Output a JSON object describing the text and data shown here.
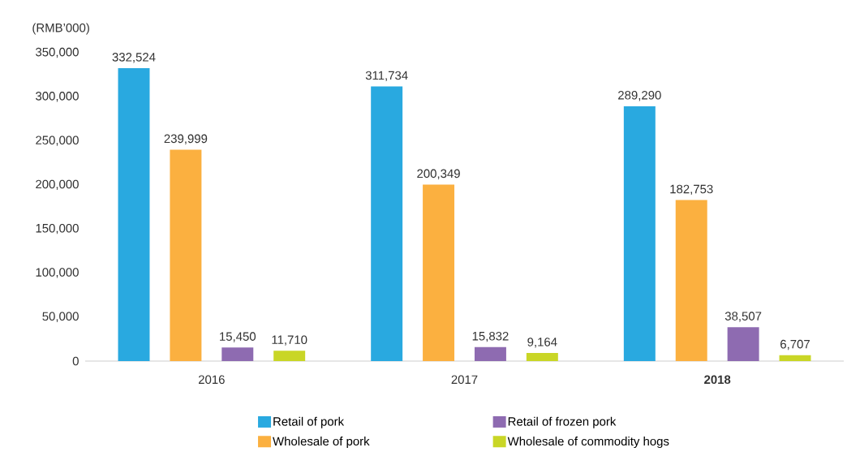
{
  "chart_data": {
    "type": "bar",
    "ylabel": "(RMB’000)",
    "categories": [
      "2016",
      "2017",
      "**2018**"
    ],
    "series": [
      {
        "name": "Retail of pork",
        "color": "#29a9e0",
        "values": [
          332524,
          311734,
          289290
        ],
        "value_labels": [
          "332,524",
          "311,734",
          "289,290"
        ]
      },
      {
        "name": "Wholesale of pork",
        "color": "#fbb040",
        "values": [
          239999,
          200349,
          182753
        ],
        "value_labels": [
          "239,999",
          "200,349",
          "182,753"
        ]
      },
      {
        "name": "Retail of frozen pork",
        "color": "#8e6bb1",
        "values": [
          15450,
          15832,
          38507
        ],
        "value_labels": [
          "15,450",
          "15,832",
          "38,507"
        ]
      },
      {
        "name": "Wholesale of commodity hogs",
        "color": "#c9d626",
        "values": [
          11710,
          9164,
          6707
        ],
        "value_labels": [
          "11,710",
          "9,164",
          "6,707"
        ]
      }
    ],
    "ylim": [
      0,
      350000
    ],
    "yticks": [
      {
        "value": 0,
        "label": "0"
      },
      {
        "value": 50000,
        "label": "50,000"
      },
      {
        "value": 100000,
        "label": "100,000"
      },
      {
        "value": 150000,
        "label": "150,000"
      },
      {
        "value": 200000,
        "label": "200,000"
      },
      {
        "value": 250000,
        "label": "250,000"
      },
      {
        "value": 300000,
        "label": "300,000"
      },
      {
        "value": 350000,
        "label": "350,000"
      }
    ],
    "legend": "bottom"
  }
}
